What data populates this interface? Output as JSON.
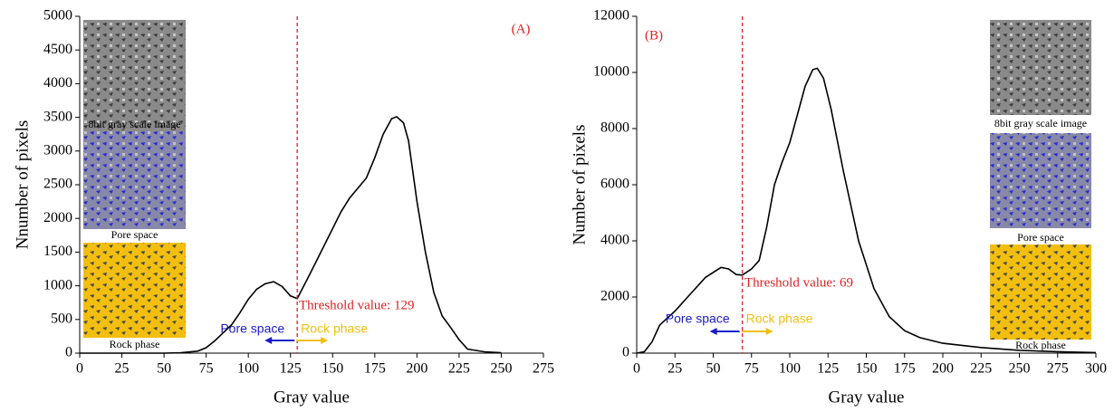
{
  "chart_data": [
    {
      "type": "line",
      "x_label": "Gray value",
      "y_label": "Nnumber of pixels",
      "panel_label": "(A)",
      "x": [
        0,
        50,
        60,
        70,
        75,
        80,
        85,
        90,
        95,
        100,
        105,
        110,
        115,
        120,
        125,
        129,
        135,
        140,
        145,
        150,
        155,
        160,
        165,
        170,
        175,
        180,
        185,
        188,
        192,
        195,
        200,
        205,
        210,
        215,
        220,
        225,
        230,
        240,
        250
      ],
      "values": [
        0,
        0,
        5,
        30,
        80,
        180,
        300,
        420,
        600,
        800,
        950,
        1030,
        1060,
        990,
        850,
        810,
        1100,
        1350,
        1600,
        1850,
        2100,
        2300,
        2450,
        2600,
        2900,
        3250,
        3480,
        3510,
        3420,
        3150,
        2250,
        1500,
        900,
        550,
        380,
        200,
        60,
        20,
        5
      ],
      "color": "#000000",
      "xlim": [
        0,
        275
      ],
      "ylim": [
        0,
        5000
      ],
      "xticks": [
        0,
        25,
        50,
        75,
        100,
        125,
        150,
        175,
        200,
        225,
        250,
        275
      ],
      "yticks": [
        0,
        500,
        1000,
        1500,
        2000,
        2500,
        3000,
        3500,
        4000,
        4500,
        5000
      ],
      "threshold": 129,
      "threshold_label": "Threshold value: 129",
      "left_label": "Pore space",
      "right_label": "Rock phase",
      "insets": [
        "8bit gray scale image",
        "Pore space",
        "Rock phase"
      ]
    },
    {
      "type": "line",
      "x_label": "Gray value",
      "y_label": "Number of pixels",
      "panel_label": "(B)",
      "x": [
        0,
        5,
        10,
        15,
        20,
        25,
        35,
        45,
        55,
        60,
        65,
        69,
        75,
        80,
        85,
        90,
        95,
        100,
        105,
        110,
        115,
        118,
        122,
        127,
        135,
        145,
        155,
        165,
        175,
        185,
        200,
        225,
        250,
        275,
        300
      ],
      "values": [
        0,
        50,
        400,
        1000,
        1250,
        1500,
        2100,
        2700,
        3050,
        3000,
        2800,
        2780,
        3000,
        3300,
        4500,
        6000,
        6800,
        7500,
        8500,
        9500,
        10100,
        10150,
        9800,
        8700,
        6500,
        4000,
        2300,
        1300,
        800,
        550,
        350,
        200,
        100,
        50,
        20
      ],
      "color": "#000000",
      "xlim": [
        0,
        300
      ],
      "ylim": [
        0,
        12000
      ],
      "xticks": [
        0,
        25,
        50,
        75,
        100,
        125,
        150,
        175,
        200,
        225,
        250,
        275,
        300
      ],
      "yticks": [
        0,
        2000,
        4000,
        6000,
        8000,
        10000,
        12000
      ],
      "threshold": 69,
      "threshold_label": "Threshold value: 69",
      "left_label": "Pore space",
      "right_label": "Rock phase",
      "insets": [
        "8bit gray scale image",
        "Pore space",
        "Rock phase"
      ]
    }
  ]
}
